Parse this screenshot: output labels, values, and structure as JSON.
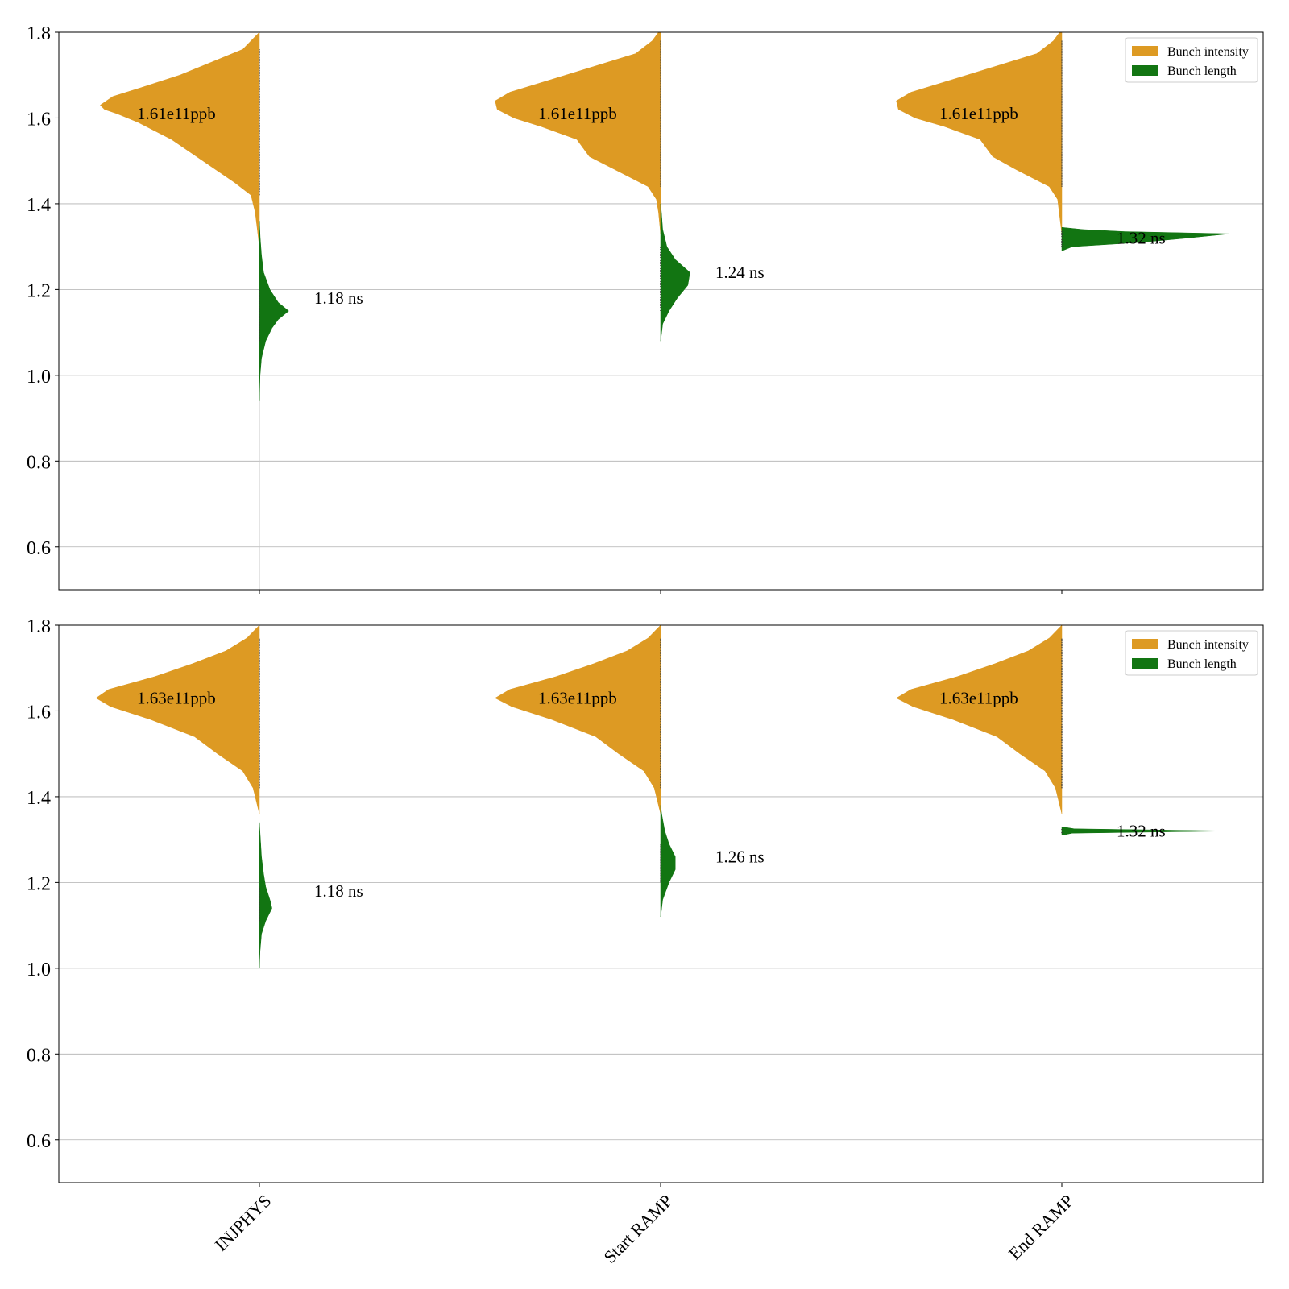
{
  "chart_data": [
    {
      "type": "violin",
      "categories": [
        "INJPHYS",
        "Start RAMP",
        "End RAMP"
      ],
      "ylim": [
        0.5,
        1.8
      ],
      "yticks": [
        "0.6",
        "0.8",
        "1.0",
        "1.2",
        "1.4",
        "1.6",
        "1.8"
      ],
      "grid": "horizontal",
      "legend": {
        "position": "top-right",
        "entries": [
          {
            "label": "Bunch intensity",
            "color": "#dd9a23"
          },
          {
            "label": "Bunch length",
            "color": "#127512"
          }
        ]
      },
      "series": [
        {
          "name": "Bunch intensity",
          "color": "#dd9a23",
          "side": "left",
          "median_labels": [
            "1.61e11ppb",
            "1.61e11ppb",
            "1.61e11ppb"
          ],
          "label_y": [
            1.61,
            1.61,
            1.61
          ],
          "profiles": [
            [
              [
                1.3,
                0.0
              ],
              [
                1.34,
                0.01
              ],
              [
                1.38,
                0.02
              ],
              [
                1.42,
                0.04
              ],
              [
                1.45,
                0.12
              ],
              [
                1.5,
                0.27
              ],
              [
                1.55,
                0.42
              ],
              [
                1.59,
                0.58
              ],
              [
                1.61,
                0.68
              ],
              [
                1.62,
                0.74
              ],
              [
                1.63,
                0.76
              ],
              [
                1.65,
                0.7
              ],
              [
                1.67,
                0.57
              ],
              [
                1.7,
                0.38
              ],
              [
                1.73,
                0.23
              ],
              [
                1.76,
                0.08
              ],
              [
                1.79,
                0.02
              ],
              [
                1.8,
                0.0
              ]
            ],
            [
              [
                1.33,
                0.0
              ],
              [
                1.38,
                0.01
              ],
              [
                1.41,
                0.02
              ],
              [
                1.44,
                0.06
              ],
              [
                1.48,
                0.22
              ],
              [
                1.51,
                0.34
              ],
              [
                1.55,
                0.4
              ],
              [
                1.58,
                0.57
              ],
              [
                1.6,
                0.7
              ],
              [
                1.62,
                0.78
              ],
              [
                1.64,
                0.79
              ],
              [
                1.66,
                0.72
              ],
              [
                1.69,
                0.52
              ],
              [
                1.72,
                0.32
              ],
              [
                1.75,
                0.12
              ],
              [
                1.78,
                0.04
              ],
              [
                1.8,
                0.01
              ]
            ],
            [
              [
                1.33,
                0.0
              ],
              [
                1.37,
                0.01
              ],
              [
                1.41,
                0.02
              ],
              [
                1.44,
                0.06
              ],
              [
                1.48,
                0.22
              ],
              [
                1.51,
                0.33
              ],
              [
                1.55,
                0.39
              ],
              [
                1.58,
                0.56
              ],
              [
                1.6,
                0.7
              ],
              [
                1.62,
                0.78
              ],
              [
                1.64,
                0.79
              ],
              [
                1.66,
                0.72
              ],
              [
                1.69,
                0.52
              ],
              [
                1.72,
                0.32
              ],
              [
                1.75,
                0.12
              ],
              [
                1.78,
                0.04
              ],
              [
                1.8,
                0.01
              ]
            ]
          ]
        },
        {
          "name": "Bunch length",
          "color": "#127512",
          "side": "right",
          "median_labels": [
            "1.18 ns",
            "1.24 ns",
            "1.32 ns"
          ],
          "label_y": [
            1.18,
            1.24,
            1.32
          ],
          "profiles": [
            [
              [
                0.94,
                0.0
              ],
              [
                1.0,
                0.003
              ],
              [
                1.04,
                0.01
              ],
              [
                1.08,
                0.03
              ],
              [
                1.11,
                0.06
              ],
              [
                1.13,
                0.09
              ],
              [
                1.15,
                0.14
              ],
              [
                1.17,
                0.09
              ],
              [
                1.2,
                0.05
              ],
              [
                1.24,
                0.02
              ],
              [
                1.28,
                0.01
              ],
              [
                1.32,
                0.004
              ],
              [
                1.36,
                0.0
              ]
            ],
            [
              [
                1.08,
                0.0
              ],
              [
                1.12,
                0.01
              ],
              [
                1.15,
                0.04
              ],
              [
                1.18,
                0.08
              ],
              [
                1.21,
                0.13
              ],
              [
                1.24,
                0.14
              ],
              [
                1.27,
                0.07
              ],
              [
                1.3,
                0.03
              ],
              [
                1.34,
                0.01
              ],
              [
                1.38,
                0.004
              ],
              [
                1.4,
                0.0
              ]
            ],
            [
              [
                1.29,
                0.0
              ],
              [
                1.3,
                0.05
              ],
              [
                1.31,
                0.38
              ],
              [
                1.32,
                0.6
              ],
              [
                1.33,
                0.8
              ],
              [
                1.335,
                0.3
              ],
              [
                1.34,
                0.1
              ],
              [
                1.345,
                0.0
              ]
            ]
          ]
        }
      ]
    },
    {
      "type": "violin",
      "categories": [
        "INJPHYS",
        "Start RAMP",
        "End RAMP"
      ],
      "ylim": [
        0.5,
        1.8
      ],
      "yticks": [
        "0.6",
        "0.8",
        "1.0",
        "1.2",
        "1.4",
        "1.6",
        "1.8"
      ],
      "grid": "horizontal",
      "legend": {
        "position": "top-right",
        "entries": [
          {
            "label": "Bunch intensity",
            "color": "#dd9a23"
          },
          {
            "label": "Bunch length",
            "color": "#127512"
          }
        ]
      },
      "series": [
        {
          "name": "Bunch intensity",
          "color": "#dd9a23",
          "side": "left",
          "median_labels": [
            "1.63e11ppb",
            "1.63e11ppb",
            "1.63e11ppb"
          ],
          "label_y": [
            1.63,
            1.63,
            1.63
          ],
          "profiles": [
            [
              [
                1.36,
                0.0
              ],
              [
                1.38,
                0.01
              ],
              [
                1.42,
                0.03
              ],
              [
                1.46,
                0.08
              ],
              [
                1.5,
                0.2
              ],
              [
                1.54,
                0.31
              ],
              [
                1.58,
                0.52
              ],
              [
                1.61,
                0.71
              ],
              [
                1.63,
                0.78
              ],
              [
                1.65,
                0.72
              ],
              [
                1.68,
                0.5
              ],
              [
                1.71,
                0.32
              ],
              [
                1.74,
                0.16
              ],
              [
                1.77,
                0.06
              ],
              [
                1.8,
                0.0
              ]
            ],
            [
              [
                1.36,
                0.0
              ],
              [
                1.38,
                0.01
              ],
              [
                1.42,
                0.03
              ],
              [
                1.46,
                0.08
              ],
              [
                1.5,
                0.2
              ],
              [
                1.54,
                0.31
              ],
              [
                1.58,
                0.52
              ],
              [
                1.61,
                0.71
              ],
              [
                1.63,
                0.79
              ],
              [
                1.65,
                0.72
              ],
              [
                1.68,
                0.5
              ],
              [
                1.71,
                0.32
              ],
              [
                1.74,
                0.16
              ],
              [
                1.77,
                0.06
              ],
              [
                1.8,
                0.0
              ]
            ],
            [
              [
                1.36,
                0.0
              ],
              [
                1.38,
                0.01
              ],
              [
                1.42,
                0.03
              ],
              [
                1.46,
                0.08
              ],
              [
                1.5,
                0.2
              ],
              [
                1.54,
                0.31
              ],
              [
                1.58,
                0.52
              ],
              [
                1.61,
                0.71
              ],
              [
                1.63,
                0.79
              ],
              [
                1.65,
                0.72
              ],
              [
                1.68,
                0.5
              ],
              [
                1.71,
                0.32
              ],
              [
                1.74,
                0.16
              ],
              [
                1.77,
                0.06
              ],
              [
                1.8,
                0.0
              ]
            ]
          ]
        },
        {
          "name": "Bunch length",
          "color": "#127512",
          "side": "right",
          "median_labels": [
            "1.18 ns",
            "1.26 ns",
            "1.32 ns"
          ],
          "label_y": [
            1.18,
            1.26,
            1.32
          ],
          "profiles": [
            [
              [
                1.0,
                0.0
              ],
              [
                1.04,
                0.003
              ],
              [
                1.08,
                0.01
              ],
              [
                1.11,
                0.03
              ],
              [
                1.14,
                0.06
              ],
              [
                1.16,
                0.05
              ],
              [
                1.19,
                0.03
              ],
              [
                1.22,
                0.02
              ],
              [
                1.26,
                0.01
              ],
              [
                1.3,
                0.005
              ],
              [
                1.34,
                0.0
              ]
            ],
            [
              [
                1.12,
                0.0
              ],
              [
                1.16,
                0.01
              ],
              [
                1.2,
                0.04
              ],
              [
                1.23,
                0.07
              ],
              [
                1.26,
                0.07
              ],
              [
                1.29,
                0.04
              ],
              [
                1.32,
                0.02
              ],
              [
                1.36,
                0.005
              ],
              [
                1.38,
                0.0
              ]
            ],
            [
              [
                1.31,
                0.0
              ],
              [
                1.315,
                0.05
              ],
              [
                1.32,
                0.8
              ],
              [
                1.325,
                0.06
              ],
              [
                1.33,
                0.0
              ]
            ]
          ]
        }
      ]
    }
  ]
}
